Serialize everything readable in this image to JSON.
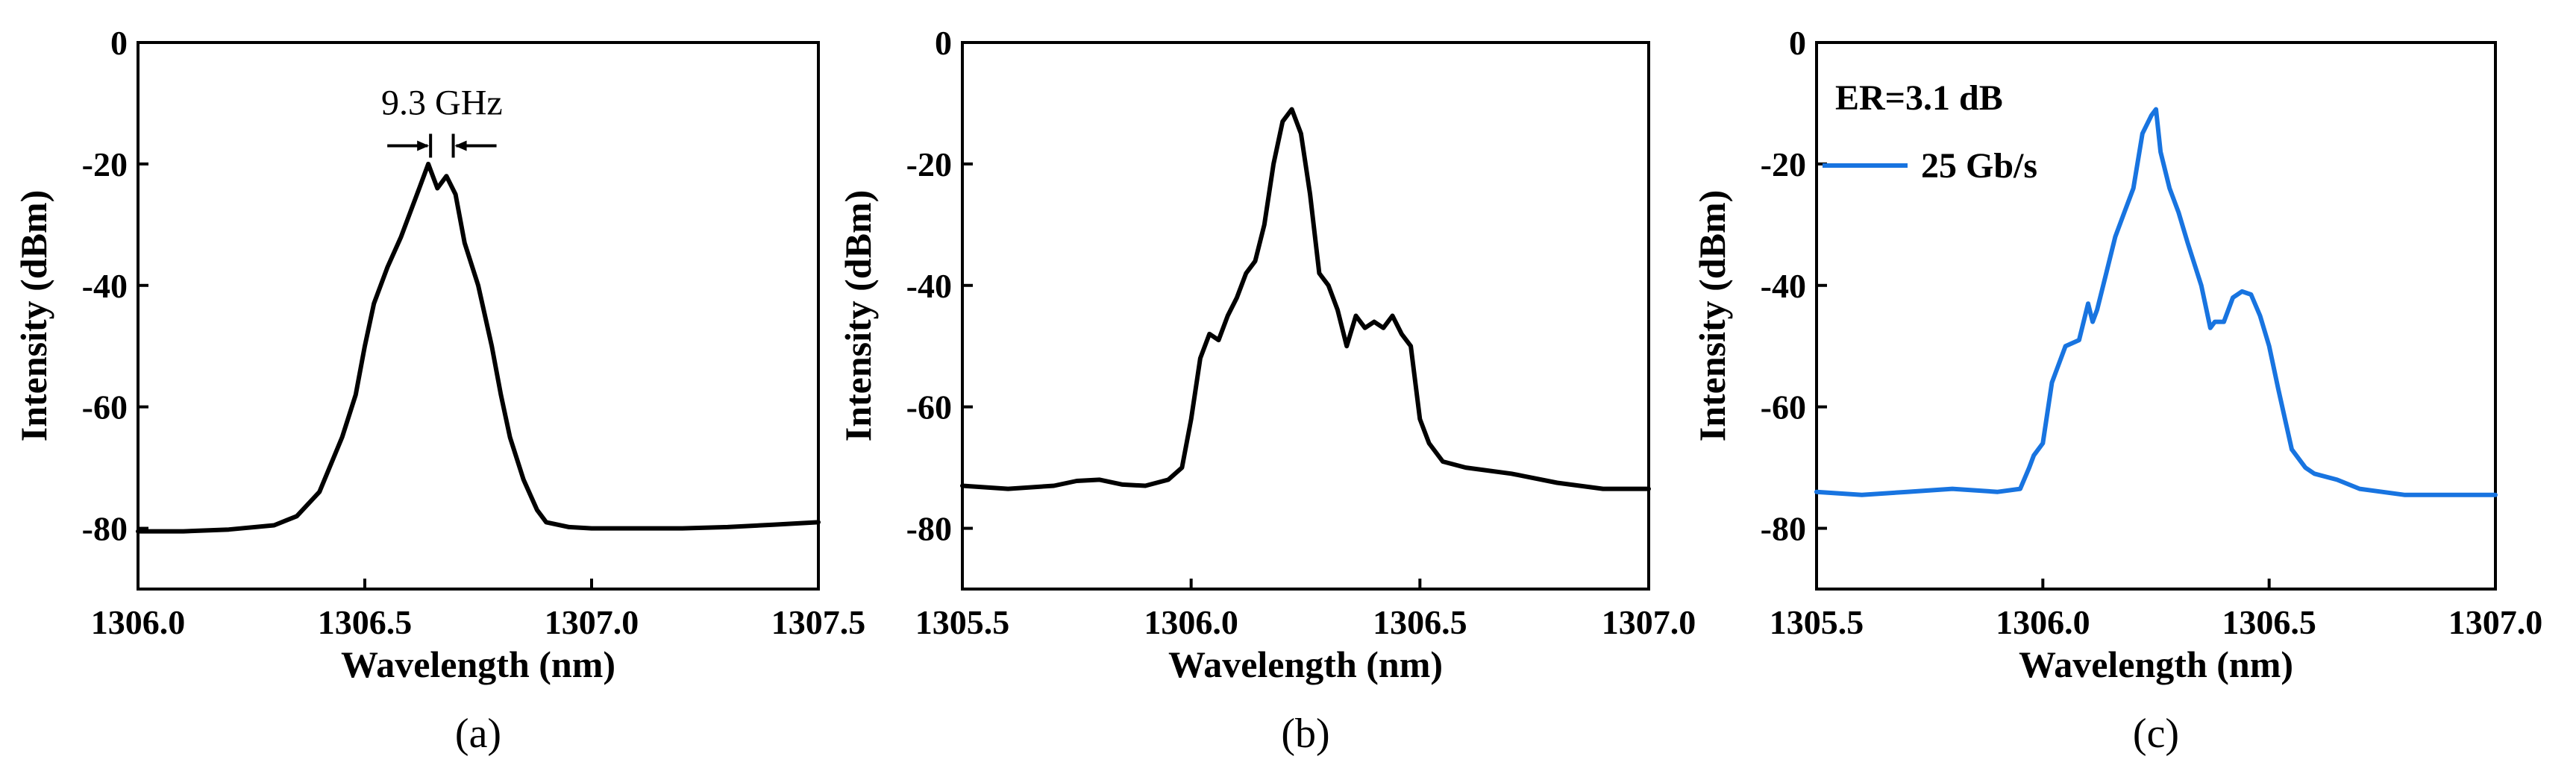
{
  "chart_data": [
    {
      "type": "line",
      "panel_label": "(a)",
      "xlabel": "Wavelength (nm)",
      "ylabel": "Intensity (dBm)",
      "xlim": [
        1306.0,
        1307.5
      ],
      "ylim": [
        -90,
        0
      ],
      "xticks": [
        1306.0,
        1306.5,
        1307.0,
        1307.5
      ],
      "xtick_labels": [
        "1306.0",
        "1306.5",
        "1307.0",
        "1307.5"
      ],
      "yticks": [
        0,
        -20,
        -40,
        -60,
        -80
      ],
      "ytick_labels": [
        "0",
        "-20",
        "-40",
        "-60",
        "-80"
      ],
      "annotation": {
        "text": "9.3 GHz",
        "x_left": 1306.645,
        "x_right": 1306.695,
        "y": -17
      },
      "series": [
        {
          "color": "#000000",
          "x": [
            1306.0,
            1306.1,
            1306.2,
            1306.3,
            1306.35,
            1306.4,
            1306.45,
            1306.48,
            1306.5,
            1306.52,
            1306.55,
            1306.58,
            1306.6,
            1306.62,
            1306.64,
            1306.66,
            1306.68,
            1306.7,
            1306.72,
            1306.75,
            1306.78,
            1306.8,
            1306.82,
            1306.85,
            1306.88,
            1306.9,
            1306.95,
            1307.0,
            1307.1,
            1307.2,
            1307.3,
            1307.4,
            1307.5
          ],
          "y": [
            -80.5,
            -80.5,
            -80.2,
            -79.5,
            -78,
            -74,
            -65,
            -58,
            -50,
            -43,
            -37,
            -32,
            -28,
            -24,
            -20,
            -24,
            -22,
            -25,
            -33,
            -40,
            -50,
            -58,
            -65,
            -72,
            -77,
            -79,
            -79.8,
            -80,
            -80,
            -80,
            -79.8,
            -79.4,
            -79
          ]
        }
      ]
    },
    {
      "type": "line",
      "panel_label": "(b)",
      "xlabel": "Wavelength (nm)",
      "ylabel": "Intensity (dBm)",
      "xlim": [
        1305.5,
        1307.0
      ],
      "ylim": [
        -90,
        0
      ],
      "xticks": [
        1305.5,
        1306.0,
        1306.5,
        1307.0
      ],
      "xtick_labels": [
        "1305.5",
        "1306.0",
        "1306.5",
        "1307.0"
      ],
      "yticks": [
        0,
        -20,
        -40,
        -60,
        -80
      ],
      "ytick_labels": [
        "0",
        "-20",
        "-40",
        "-60",
        "-80"
      ],
      "series": [
        {
          "color": "#000000",
          "x": [
            1305.5,
            1305.6,
            1305.7,
            1305.75,
            1305.8,
            1305.85,
            1305.9,
            1305.95,
            1305.98,
            1306.0,
            1306.02,
            1306.04,
            1306.06,
            1306.08,
            1306.1,
            1306.12,
            1306.14,
            1306.16,
            1306.18,
            1306.2,
            1306.22,
            1306.24,
            1306.26,
            1306.28,
            1306.3,
            1306.32,
            1306.34,
            1306.36,
            1306.38,
            1306.4,
            1306.42,
            1306.44,
            1306.46,
            1306.48,
            1306.5,
            1306.52,
            1306.55,
            1306.6,
            1306.7,
            1306.8,
            1306.9,
            1307.0
          ],
          "y": [
            -73,
            -73.5,
            -73,
            -72.2,
            -72,
            -72.8,
            -73,
            -72,
            -70,
            -62,
            -52,
            -48,
            -49,
            -45,
            -42,
            -38,
            -36,
            -30,
            -20,
            -13,
            -11,
            -15,
            -25,
            -38,
            -40,
            -44,
            -50,
            -45,
            -47,
            -46,
            -47,
            -45,
            -48,
            -50,
            -62,
            -66,
            -69,
            -70,
            -71,
            -72.5,
            -73.5,
            -73.5
          ]
        }
      ]
    },
    {
      "type": "line",
      "panel_label": "(c)",
      "xlabel": "Wavelength (nm)",
      "ylabel": "Intensity (dBm)",
      "xlim": [
        1305.5,
        1307.0
      ],
      "ylim": [
        -90,
        0
      ],
      "xticks": [
        1305.5,
        1306.0,
        1306.5,
        1307.0
      ],
      "xtick_labels": [
        "1305.5",
        "1306.0",
        "1306.5",
        "1307.0"
      ],
      "yticks": [
        0,
        -20,
        -40,
        -60,
        -80
      ],
      "ytick_labels": [
        "0",
        "-20",
        "-40",
        "-60",
        "-80"
      ],
      "annotation": {
        "text": "ER=3.1 dB"
      },
      "legend": {
        "position": "top-left"
      },
      "series": [
        {
          "name": "25 Gb/s",
          "color": "#1874e0",
          "x": [
            1305.5,
            1305.6,
            1305.7,
            1305.8,
            1305.9,
            1305.95,
            1305.97,
            1305.98,
            1306.0,
            1306.02,
            1306.05,
            1306.08,
            1306.1,
            1306.11,
            1306.12,
            1306.14,
            1306.16,
            1306.18,
            1306.2,
            1306.22,
            1306.24,
            1306.25,
            1306.26,
            1306.28,
            1306.3,
            1306.32,
            1306.35,
            1306.37,
            1306.38,
            1306.4,
            1306.42,
            1306.44,
            1306.46,
            1306.48,
            1306.5,
            1306.52,
            1306.55,
            1306.58,
            1306.6,
            1306.65,
            1306.7,
            1306.8,
            1306.9,
            1307.0
          ],
          "y": [
            -74,
            -74.5,
            -74,
            -73.5,
            -74,
            -73.5,
            -70,
            -68,
            -66,
            -56,
            -50,
            -49,
            -43,
            -46,
            -44,
            -38,
            -32,
            -28,
            -24,
            -15,
            -12,
            -11,
            -18,
            -24,
            -28,
            -33,
            -40,
            -47,
            -46,
            -46,
            -42,
            -41,
            -41.5,
            -45,
            -50,
            -57,
            -67,
            -70,
            -71,
            -72,
            -73.5,
            -74.5,
            -74.5,
            -74.5
          ]
        }
      ]
    }
  ]
}
